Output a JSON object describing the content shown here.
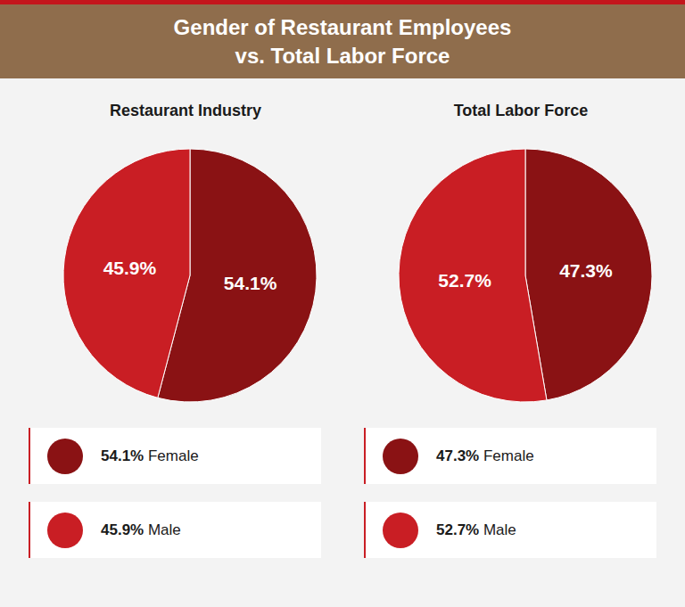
{
  "title": "Gender of Restaurant Employees\nvs. Total Labor Force",
  "chart_data": [
    {
      "type": "pie",
      "title": "Restaurant Industry",
      "categories": [
        "Female",
        "Male"
      ],
      "values": [
        54.1,
        45.9
      ],
      "value_labels": [
        "54.1%",
        "45.9%"
      ],
      "colors": [
        "#8a1214",
        "#c91e24"
      ],
      "data_labels": true,
      "legend": "bottom"
    },
    {
      "type": "pie",
      "title": "Total Labor Force",
      "categories": [
        "Female",
        "Male"
      ],
      "values": [
        47.3,
        52.7
      ],
      "value_labels": [
        "47.3%",
        "52.7%"
      ],
      "colors": [
        "#8a1214",
        "#c91e24"
      ],
      "data_labels": true,
      "legend": "bottom"
    }
  ]
}
